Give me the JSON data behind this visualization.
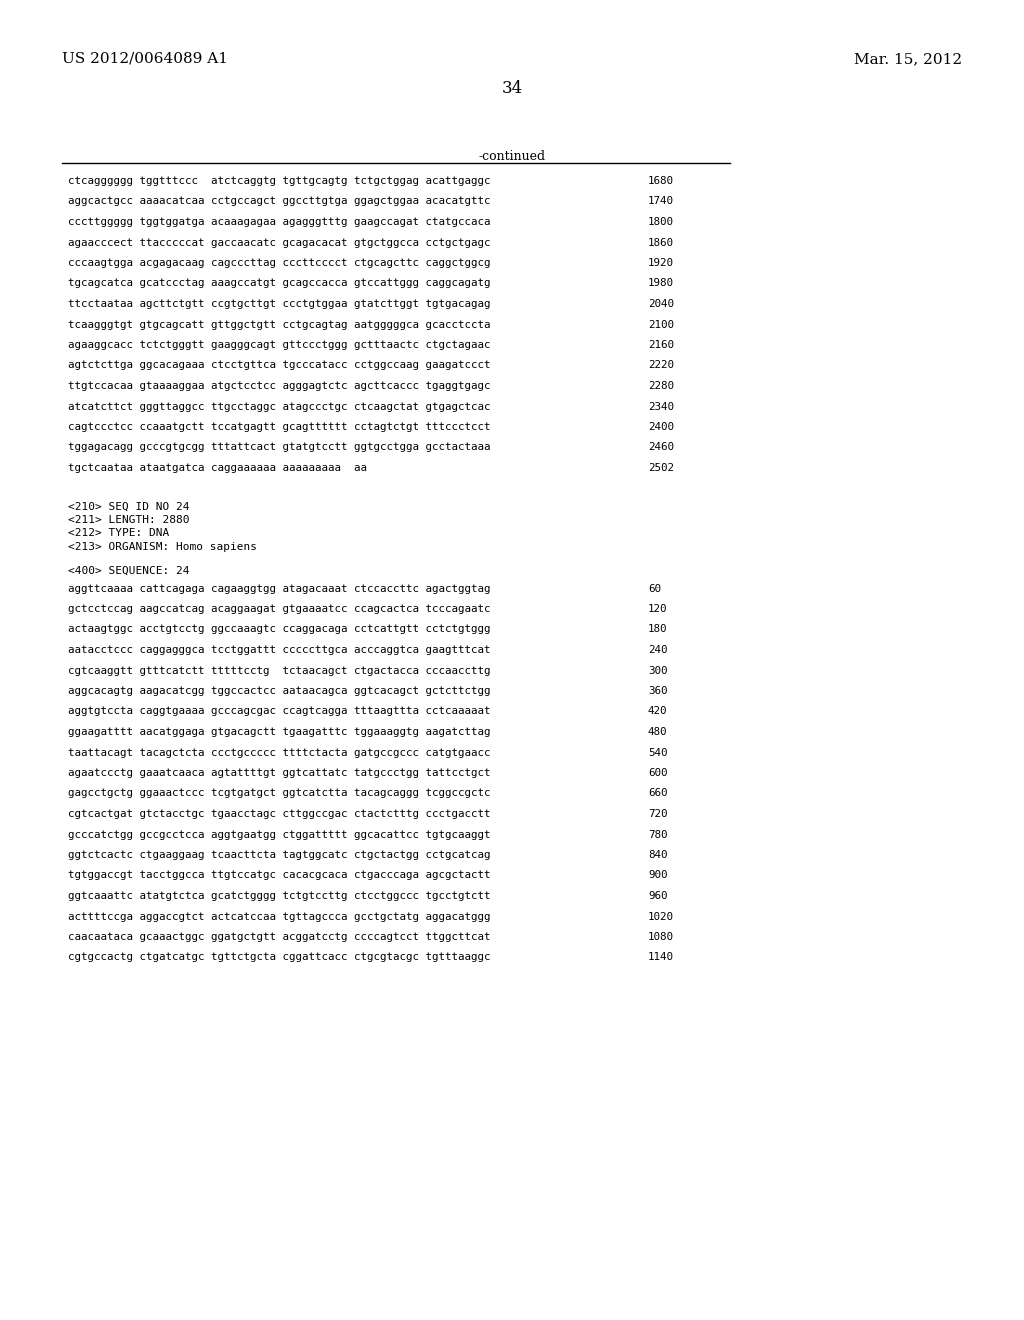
{
  "header_left": "US 2012/0064089 A1",
  "header_right": "Mar. 15, 2012",
  "page_number": "34",
  "continued_label": "-continued",
  "background_color": "#ffffff",
  "text_color": "#000000",
  "continued_lines": [
    [
      "ctcagggggg tggtttccc  atctcaggtg tgttgcagtg tctgctggag acattgaggc",
      "1680"
    ],
    [
      "aggcactgcc aaaacatcaa cctgccagct ggccttgtga ggagctggaa acacatgttc",
      "1740"
    ],
    [
      "cccttggggg tggtggatga acaaagagaa agagggtttg gaagccagat ctatgccaca",
      "1800"
    ],
    [
      "agaacccect ttacccccat gaccaacatc gcagacacat gtgctggcca cctgctgagc",
      "1860"
    ],
    [
      "cccaagtgga acgagacaag cagcccttag cccttcccct ctgcagcttc caggctggcg",
      "1920"
    ],
    [
      "tgcagcatca gcatccctag aaagccatgt gcagccacca gtccattggg caggcagatg",
      "1980"
    ],
    [
      "ttcctaataa agcttctgtt ccgtgcttgt ccctgtggaa gtatcttggt tgtgacagag",
      "2040"
    ],
    [
      "tcaagggtgt gtgcagcatt gttggctgtt cctgcagtag aatgggggca gcacctccta",
      "2100"
    ],
    [
      "agaaggcacc tctctgggtt gaagggcagt gttccctggg gctttaactc ctgctagaac",
      "2160"
    ],
    [
      "agtctcttga ggcacagaaa ctcctgttca tgcccatacc cctggccaag gaagatccct",
      "2220"
    ],
    [
      "ttgtccacaa gtaaaaggaa atgctcctcc agggagtctc agcttcaccc tgaggtgagc",
      "2280"
    ],
    [
      "atcatcttct gggttaggcc ttgcctaggc atagccctgc ctcaagctat gtgagctcac",
      "2340"
    ],
    [
      "cagtccctcc ccaaatgctt tccatgagtt gcagtttttt cctagtctgt tttccctcct",
      "2400"
    ],
    [
      "tggagacagg gcccgtgcgg tttattcact gtatgtcctt ggtgcctgga gcctactaaa",
      "2460"
    ],
    [
      "tgctcaataa ataatgatca caggaaaaaa aaaaaaaaa  aa",
      "2502"
    ]
  ],
  "metadata_lines": [
    "<210> SEQ ID NO 24",
    "<211> LENGTH: 2880",
    "<212> TYPE: DNA",
    "<213> ORGANISM: Homo sapiens"
  ],
  "seq_label": "<400> SEQUENCE: 24",
  "sequence_lines": [
    [
      "aggttcaaaa cattcagaga cagaaggtgg atagacaaat ctccaccttc agactggtag",
      "60"
    ],
    [
      "gctcctccag aagccatcag acaggaagat gtgaaaatcc ccagcactca tcccagaatc",
      "120"
    ],
    [
      "actaagtggc acctgtcctg ggccaaagtc ccaggacaga cctcattgtt cctctgtggg",
      "180"
    ],
    [
      "aatacctccc caggagggca tcctggattt cccccttgca acccaggtca gaagtttcat",
      "240"
    ],
    [
      "cgtcaaggtt gtttcatctt tttttcctg  tctaacagct ctgactacca cccaaccttg",
      "300"
    ],
    [
      "aggcacagtg aagacatcgg tggccactcc aataacagca ggtcacagct gctcttctgg",
      "360"
    ],
    [
      "aggtgtccta caggtgaaaa gcccagcgac ccagtcagga tttaagttta cctcaaaaat",
      "420"
    ],
    [
      "ggaagatttt aacatggaga gtgacagctt tgaagatttc tggaaaggtg aagatcttag",
      "480"
    ],
    [
      "taattacagt tacagctcta ccctgccccc ttttctacta gatgccgccc catgtgaacc",
      "540"
    ],
    [
      "agaatccctg gaaatcaaca agtattttgt ggtcattatc tatgccctgg tattcctgct",
      "600"
    ],
    [
      "gagcctgctg ggaaactccc tcgtgatgct ggtcatctta tacagcaggg tcggccgctc",
      "660"
    ],
    [
      "cgtcactgat gtctacctgc tgaacctagc cttggccgac ctactctttg ccctgacctt",
      "720"
    ],
    [
      "gcccatctgg gccgcctcca aggtgaatgg ctggattttt ggcacattcc tgtgcaaggt",
      "780"
    ],
    [
      "ggtctcactc ctgaaggaag tcaacttcta tagtggcatc ctgctactgg cctgcatcag",
      "840"
    ],
    [
      "tgtggaccgt tacctggcca ttgtccatgc cacacgcaca ctgacccaga agcgctactt",
      "900"
    ],
    [
      "ggtcaaattc atatgtctca gcatctgggg tctgtccttg ctcctggccc tgcctgtctt",
      "960"
    ],
    [
      "acttttccga aggaccgtct actcatccaa tgttagccca gcctgctatg aggacatggg",
      "1020"
    ],
    [
      "caacaataca gcaaactggc ggatgctgtt acggatcctg ccccagtcct ttggcttcat",
      "1080"
    ],
    [
      "cgtgccactg ctgatcatgc tgttctgcta cggattcacc ctgcgtacgc tgtttaaggc",
      "1140"
    ]
  ]
}
